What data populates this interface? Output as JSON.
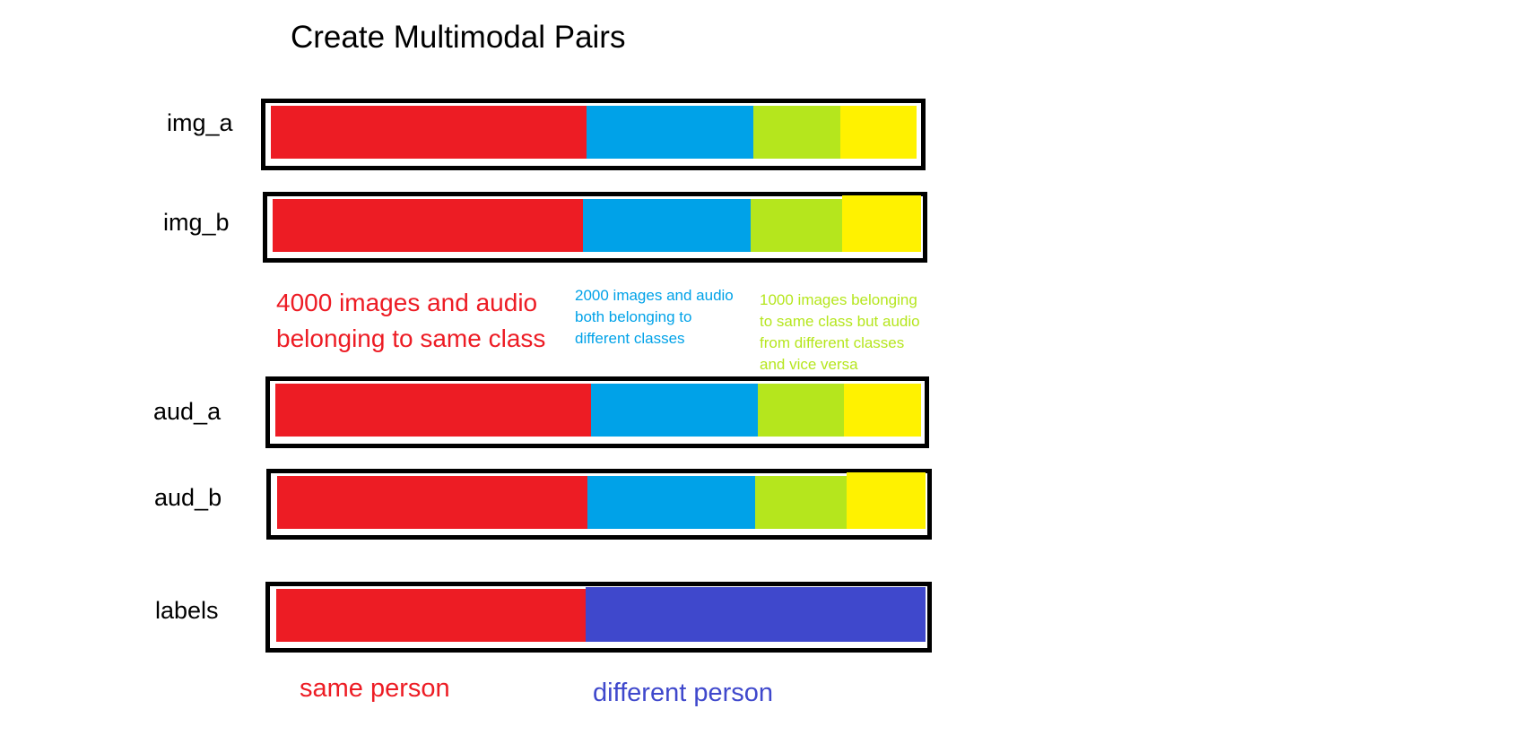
{
  "title": "Create Multimodal Pairs",
  "colors": {
    "same_class": "#ED1C24",
    "different_classes": "#00A2E8",
    "image_same_audio_different": "#B5E61D",
    "vice_versa": "#FFF200",
    "different_person": "#3F48CC"
  },
  "rows": [
    {
      "label": "img_a"
    },
    {
      "label": "img_b"
    },
    {
      "label": "aud_a"
    },
    {
      "label": "aud_b"
    },
    {
      "label": "labels"
    }
  ],
  "notes": {
    "red": [
      "4000 images and audio",
      "belonging to same class"
    ],
    "blue": [
      "2000 images and audio",
      "both belonging to",
      "different classes"
    ],
    "green": [
      "1000 images belonging",
      "to same class but audio",
      "from different classes",
      "and vice versa"
    ]
  },
  "label_legend": {
    "same": "same person",
    "different": "different person"
  }
}
